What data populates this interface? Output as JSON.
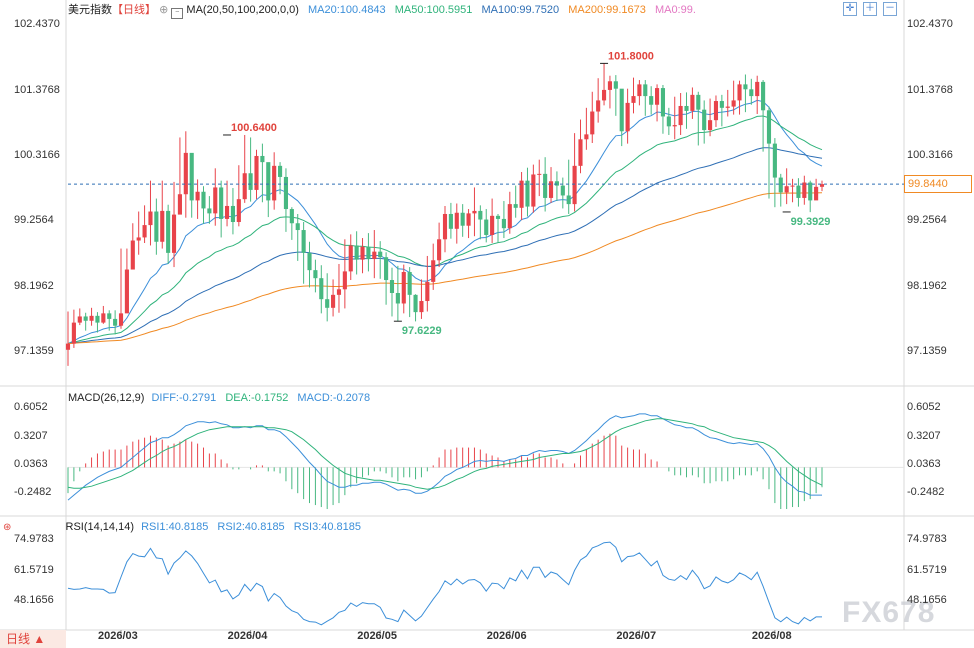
{
  "header": {
    "title": "美元指数",
    "period": "【日线】",
    "ma_label": "MA(20,50,100,200,0,0)",
    "ma20": "MA20:100.4843",
    "ma50": "MA50:100.5951",
    "ma100": "MA100:99.7520",
    "ma200": "MA200:99.1673",
    "ma0": "MA0:99."
  },
  "macd_header": {
    "label": "MACD(26,12,9)",
    "diff": "DIFF:-0.2791",
    "dea": "DEA:-0.1752",
    "macd": "MACD:-0.2078"
  },
  "rsi_header": {
    "label": "RSI(14,14,14)",
    "rsi1": "RSI1:40.8185",
    "rsi2": "RSI2:40.8185",
    "rsi3": "RSI3:40.8185"
  },
  "footer": {
    "period_button": "日线 ▲"
  },
  "watermark": "FX678",
  "current_price": "99.8440",
  "colors": {
    "up": "#e8434a",
    "down": "#47b881",
    "ma20": "#3c8fd9",
    "ma50": "#2fb37b",
    "ma100": "#2f6fb5",
    "ma200": "#f08a24",
    "ma0": "#e377c2",
    "diff": "#3c8fd9",
    "dea": "#2fb37b",
    "rsi": "#3c8fd9"
  },
  "chart_data": [
    {
      "type": "candlestick",
      "title": "美元指数",
      "ylim": [
        96.8,
        102.6
      ],
      "y_ticks": [
        "102.4370",
        "101.3768",
        "100.3166",
        "99.2564",
        "98.1962",
        "97.1359"
      ],
      "x_ticks": [
        "2026/03",
        "2026/04",
        "2026/05",
        "2026/06",
        "2026/07",
        "2026/08"
      ],
      "annotations": {
        "high_1": "100.6400",
        "low_1": "97.6229",
        "high_2": "101.8000",
        "low_2": "99.3929"
      },
      "closes": [
        97.26,
        97.6,
        97.7,
        97.63,
        97.71,
        97.6,
        97.75,
        97.66,
        97.55,
        97.75,
        98.46,
        98.93,
        98.98,
        99.18,
        99.4,
        98.91,
        99.41,
        98.73,
        99.35,
        99.68,
        100.35,
        99.58,
        99.72,
        99.45,
        99.37,
        99.79,
        99.28,
        99.49,
        99.23,
        99.6,
        100.02,
        99.75,
        100.3,
        100.2,
        99.58,
        100.14,
        99.96,
        99.44,
        99.21,
        99.1,
        98.73,
        98.45,
        98.32,
        97.98,
        97.84,
        98.05,
        98.14,
        98.43,
        98.85,
        98.62,
        98.83,
        98.63,
        98.75,
        98.66,
        98.29,
        98.08,
        97.91,
        98.42,
        98.05,
        97.77,
        97.95,
        98.26,
        98.61,
        98.95,
        99.36,
        99.12,
        99.38,
        99.17,
        99.37,
        99.41,
        99.27,
        99.02,
        99.33,
        99.28,
        99.13,
        99.52,
        99.46,
        99.9,
        99.48,
        100.0,
        100.01,
        99.62,
        99.89,
        99.82,
        99.66,
        99.52,
        100.14,
        100.57,
        100.65,
        101.02,
        101.2,
        101.37,
        101.51,
        101.39,
        100.7,
        101.16,
        101.27,
        101.46,
        101.27,
        101.13,
        101.4,
        100.94,
        100.78,
        100.8,
        101.11,
        101.03,
        101.29,
        101.05,
        100.72,
        100.88,
        101.19,
        101.08,
        101.1,
        101.2,
        101.46,
        101.38,
        101.27,
        101.5,
        101.04,
        100.5,
        99.95,
        99.71,
        99.81,
        99.82,
        99.62,
        99.87,
        99.58,
        99.8,
        99.844
      ],
      "highs": [
        97.78,
        97.81,
        97.83,
        97.76,
        97.84,
        97.77,
        97.87,
        97.8,
        97.8,
        98.8,
        98.8,
        99.21,
        99.4,
        99.5,
        99.9,
        99.61,
        99.9,
        99.51,
        99.88,
        100.6,
        100.7,
        100.1,
        99.92,
        99.81,
        99.65,
        100.1,
        99.9,
        99.9,
        99.78,
        100.15,
        100.64,
        100.6,
        100.4,
        100.5,
        100.18,
        100.36,
        100.2,
        100.1,
        99.47,
        99.36,
        99.23,
        98.91,
        98.62,
        98.53,
        98.4,
        98.3,
        98.55,
        98.95,
        99.03,
        99.08,
        98.97,
        99.05,
        99.1,
        98.92,
        98.74,
        98.49,
        98.52,
        98.54,
        98.5,
        98.06,
        98.3,
        98.68,
        98.88,
        99.22,
        99.49,
        99.54,
        99.53,
        99.52,
        99.44,
        99.79,
        99.5,
        99.44,
        99.61,
        99.36,
        99.57,
        99.72,
        99.82,
        100.04,
        100.11,
        100.16,
        100.24,
        100.28,
        100.12,
        100.05,
        99.95,
        100.24,
        100.67,
        100.89,
        101.08,
        101.34,
        101.56,
        101.8,
        101.6,
        101.61,
        101.34,
        101.39,
        101.57,
        101.53,
        101.53,
        101.43,
        101.46,
        101.45,
        101.08,
        101.26,
        101.32,
        101.33,
        101.41,
        101.34,
        101.2,
        101.23,
        101.28,
        101.29,
        101.37,
        101.52,
        101.52,
        101.62,
        101.55,
        101.6,
        101.53,
        101.1,
        100.59,
        100.01,
        100.1,
        99.93,
        99.94,
        99.98,
        99.9,
        99.93,
        99.9
      ],
      "lows": [
        96.9,
        97.19,
        97.56,
        97.47,
        97.55,
        97.44,
        97.58,
        97.47,
        97.41,
        97.5,
        98.2,
        98.58,
        98.7,
        98.89,
        98.85,
        98.7,
        98.8,
        98.55,
        98.5,
        99.49,
        99.3,
        99.3,
        99.28,
        99.2,
        99.2,
        99.17,
        98.98,
        99.16,
        99.03,
        99.16,
        99.54,
        99.56,
        99.6,
        99.55,
        99.31,
        99.43,
        99.68,
        99.07,
        98.94,
        98.6,
        98.23,
        98.17,
        98.09,
        97.75,
        97.62,
        97.7,
        97.76,
        97.83,
        98.29,
        98.38,
        98.4,
        98.43,
        98.32,
        98.31,
        97.89,
        97.7,
        97.62,
        97.75,
        97.69,
        97.62,
        97.66,
        97.78,
        98.13,
        98.5,
        98.74,
        98.96,
        98.88,
        98.99,
        98.97,
        99.0,
        98.95,
        98.9,
        98.89,
        98.89,
        98.97,
        99.04,
        99.3,
        99.26,
        99.32,
        99.38,
        99.65,
        99.4,
        99.54,
        99.57,
        99.45,
        99.36,
        99.4,
        100.02,
        100.4,
        100.51,
        100.84,
        101.12,
        101.07,
        100.95,
        100.46,
        100.5,
        100.99,
        101.12,
        100.95,
        100.97,
        100.86,
        100.66,
        100.64,
        100.57,
        100.64,
        100.74,
        100.9,
        100.47,
        100.5,
        100.62,
        100.77,
        100.78,
        100.94,
        100.97,
        100.97,
        101.01,
        101.13,
        100.98,
        100.37,
        99.61,
        99.47,
        99.48,
        99.52,
        99.55,
        99.48,
        99.51,
        99.39,
        99.64,
        99.73
      ]
    },
    {
      "type": "macd",
      "ylim": [
        -0.45,
        0.7
      ],
      "y_ticks": [
        "0.6052",
        "0.3207",
        "0.0363",
        "-0.2482"
      ],
      "series": [
        {
          "name": "DIFF",
          "values": [
            -0.33,
            -0.28,
            -0.23,
            -0.18,
            -0.14,
            -0.1,
            -0.07,
            -0.04,
            -0.02,
            0.0,
            0.05,
            0.1,
            0.15,
            0.2,
            0.25,
            0.27,
            0.3,
            0.3,
            0.33,
            0.37,
            0.42,
            0.44,
            0.46,
            0.46,
            0.45,
            0.46,
            0.44,
            0.43,
            0.4,
            0.4,
            0.41,
            0.4,
            0.42,
            0.42,
            0.38,
            0.38,
            0.36,
            0.31,
            0.25,
            0.19,
            0.12,
            0.05,
            -0.01,
            -0.08,
            -0.14,
            -0.17,
            -0.2,
            -0.2,
            -0.18,
            -0.18,
            -0.16,
            -0.16,
            -0.15,
            -0.15,
            -0.17,
            -0.2,
            -0.23,
            -0.22,
            -0.23,
            -0.26,
            -0.26,
            -0.24,
            -0.2,
            -0.15,
            -0.09,
            -0.06,
            -0.02,
            0.0,
            0.03,
            0.06,
            0.07,
            0.06,
            0.07,
            0.07,
            0.06,
            0.08,
            0.09,
            0.12,
            0.12,
            0.15,
            0.17,
            0.16,
            0.17,
            0.17,
            0.16,
            0.14,
            0.17,
            0.22,
            0.27,
            0.33,
            0.38,
            0.44,
            0.49,
            0.52,
            0.5,
            0.51,
            0.52,
            0.54,
            0.54,
            0.52,
            0.52,
            0.49,
            0.46,
            0.43,
            0.42,
            0.4,
            0.4,
            0.37,
            0.33,
            0.3,
            0.29,
            0.27,
            0.25,
            0.24,
            0.25,
            0.24,
            0.23,
            0.24,
            0.19,
            0.11,
            0.0,
            -0.09,
            -0.15,
            -0.19,
            -0.24,
            -0.25,
            -0.28,
            -0.28,
            -0.28
          ]
        },
        {
          "name": "DEA",
          "values": [
            -0.2,
            -0.21,
            -0.21,
            -0.2,
            -0.19,
            -0.17,
            -0.15,
            -0.13,
            -0.11,
            -0.09,
            -0.06,
            -0.03,
            0.01,
            0.05,
            0.09,
            0.12,
            0.16,
            0.19,
            0.21,
            0.24,
            0.28,
            0.31,
            0.34,
            0.36,
            0.38,
            0.39,
            0.4,
            0.41,
            0.41,
            0.41,
            0.41,
            0.41,
            0.41,
            0.41,
            0.4,
            0.4,
            0.39,
            0.38,
            0.36,
            0.32,
            0.28,
            0.23,
            0.18,
            0.12,
            0.07,
            0.02,
            -0.02,
            -0.06,
            -0.08,
            -0.1,
            -0.11,
            -0.12,
            -0.13,
            -0.13,
            -0.14,
            -0.15,
            -0.16,
            -0.17,
            -0.18,
            -0.2,
            -0.21,
            -0.22,
            -0.21,
            -0.2,
            -0.18,
            -0.15,
            -0.12,
            -0.1,
            -0.07,
            -0.04,
            -0.02,
            -0.01,
            0.01,
            0.02,
            0.03,
            0.04,
            0.05,
            0.06,
            0.07,
            0.08,
            0.1,
            0.11,
            0.12,
            0.13,
            0.14,
            0.14,
            0.15,
            0.16,
            0.18,
            0.21,
            0.24,
            0.28,
            0.32,
            0.36,
            0.39,
            0.41,
            0.43,
            0.45,
            0.47,
            0.48,
            0.49,
            0.49,
            0.48,
            0.47,
            0.46,
            0.45,
            0.44,
            0.42,
            0.41,
            0.38,
            0.36,
            0.34,
            0.32,
            0.3,
            0.29,
            0.28,
            0.27,
            0.26,
            0.25,
            0.22,
            0.18,
            0.12,
            0.06,
            0.01,
            -0.04,
            -0.08,
            -0.12,
            -0.15,
            -0.18
          ]
        },
        {
          "name": "MACD",
          "values": [
            -0.26,
            -0.14,
            -0.04,
            0.04,
            0.1,
            0.14,
            0.16,
            0.18,
            0.18,
            0.18,
            0.22,
            0.26,
            0.28,
            0.3,
            0.32,
            0.3,
            0.28,
            0.22,
            0.24,
            0.26,
            0.28,
            0.26,
            0.24,
            0.2,
            0.14,
            0.14,
            0.08,
            0.04,
            -0.02,
            -0.02,
            0.0,
            -0.02,
            0.02,
            0.02,
            -0.04,
            -0.04,
            -0.06,
            -0.14,
            -0.22,
            -0.26,
            -0.32,
            -0.36,
            -0.38,
            -0.4,
            -0.42,
            -0.38,
            -0.36,
            -0.28,
            -0.2,
            -0.16,
            -0.1,
            -0.08,
            -0.04,
            -0.04,
            -0.06,
            -0.1,
            -0.14,
            -0.1,
            -0.1,
            -0.12,
            -0.1,
            -0.04,
            0.02,
            0.1,
            0.18,
            0.18,
            0.2,
            0.2,
            0.2,
            0.2,
            0.18,
            0.14,
            0.12,
            0.1,
            0.06,
            0.08,
            0.08,
            0.12,
            0.1,
            0.14,
            0.14,
            0.1,
            0.1,
            0.08,
            0.04,
            0.0,
            0.04,
            0.12,
            0.18,
            0.24,
            0.28,
            0.32,
            0.34,
            0.32,
            0.22,
            0.2,
            0.18,
            0.18,
            0.14,
            0.08,
            0.06,
            0.0,
            -0.04,
            -0.08,
            -0.08,
            -0.1,
            -0.08,
            -0.1,
            -0.16,
            -0.16,
            -0.14,
            -0.14,
            -0.14,
            -0.12,
            -0.08,
            -0.08,
            -0.08,
            -0.04,
            -0.12,
            -0.22,
            -0.36,
            -0.42,
            -0.42,
            -0.4,
            -0.4,
            -0.34,
            -0.32,
            -0.26,
            -0.2
          ]
        }
      ]
    },
    {
      "type": "line",
      "ylim": [
        35,
        80
      ],
      "y_ticks": [
        "74.9783",
        "61.5719",
        "48.1656"
      ],
      "series": [
        {
          "name": "RSI1",
          "values": [
            53.4,
            52.9,
            53.1,
            53.7,
            53.1,
            53.1,
            52.9,
            51.3,
            51.5,
            58.4,
            65.1,
            68.7,
            67.6,
            67.3,
            71.0,
            66.8,
            66.4,
            59.6,
            64.5,
            66.8,
            69.9,
            67.7,
            64.4,
            60.0,
            55.8,
            57.0,
            51.8,
            52.7,
            48.7,
            50.5,
            55.1,
            52.2,
            55.6,
            54.2,
            47.8,
            51.1,
            49.3,
            45.6,
            43.5,
            42.5,
            39.7,
            38.7,
            38.5,
            37.3,
            38.9,
            40.4,
            42.8,
            43.7,
            46.9,
            45.4,
            47.1,
            46.6,
            46.6,
            45.0,
            40.3,
            39.7,
            38.7,
            43.8,
            41.4,
            39.0,
            41.1,
            44.9,
            48.6,
            52.0,
            56.7,
            54.9,
            57.5,
            55.3,
            57.0,
            57.3,
            55.8,
            52.1,
            55.7,
            55.4,
            53.2,
            58.0,
            56.7,
            61.4,
            57.6,
            62.7,
            62.7,
            58.2,
            60.6,
            59.7,
            57.3,
            55.0,
            61.3,
            65.9,
            67.6,
            71.2,
            72.2,
            73.5,
            73.8,
            71.5,
            65.1,
            67.4,
            67.7,
            69.0,
            66.2,
            63.3,
            65.5,
            59.1,
            57.4,
            56.9,
            59.0,
            57.3,
            61.4,
            58.2,
            53.2,
            54.5,
            58.4,
            56.6,
            55.8,
            57.2,
            60.2,
            59.0,
            57.2,
            60.5,
            54.3,
            47.2,
            40.4,
            38.6,
            40.7,
            38.7,
            37.7,
            40.5,
            39.0,
            40.8,
            40.8
          ]
        }
      ]
    }
  ]
}
